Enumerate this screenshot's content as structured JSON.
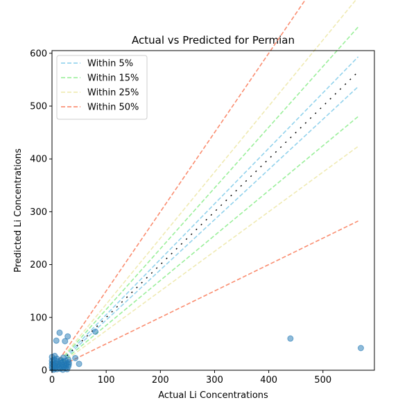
{
  "chart_data": {
    "type": "scatter",
    "title": "Actual vs Predicted for Permian",
    "xlabel": "Actual Li Concentrations",
    "ylabel": "Predicted Li Concentrations",
    "xlim": [
      0,
      595
    ],
    "ylim": [
      0,
      605
    ],
    "xticks": [
      0,
      100,
      200,
      300,
      400,
      500
    ],
    "yticks": [
      0,
      100,
      200,
      300,
      400,
      500,
      600
    ],
    "grid": false,
    "legend_position": "top-left",
    "line_range": [
      0,
      565
    ],
    "point_color": "#1f77b4",
    "bands": [
      {
        "name": "Within 5%",
        "factor": 0.05,
        "color": "#87ceeb"
      },
      {
        "name": "Within 15%",
        "factor": 0.15,
        "color": "#90ee90"
      },
      {
        "name": "Within 25%",
        "factor": 0.25,
        "color": "#eee8aa"
      },
      {
        "name": "Within 50%",
        "factor": 0.5,
        "color": "#fa8060"
      }
    ],
    "points": [
      {
        "x": 0,
        "y": 25
      },
      {
        "x": 0,
        "y": 18
      },
      {
        "x": 0,
        "y": 12
      },
      {
        "x": 0,
        "y": 6
      },
      {
        "x": 1,
        "y": 3
      },
      {
        "x": 2,
        "y": 10
      },
      {
        "x": 2,
        "y": 15
      },
      {
        "x": 3,
        "y": 1
      },
      {
        "x": 4,
        "y": 20
      },
      {
        "x": 5,
        "y": 8
      },
      {
        "x": 5,
        "y": 27
      },
      {
        "x": 6,
        "y": 4
      },
      {
        "x": 7,
        "y": 13
      },
      {
        "x": 8,
        "y": 56
      },
      {
        "x": 9,
        "y": 22
      },
      {
        "x": 9,
        "y": 2
      },
      {
        "x": 10,
        "y": 17
      },
      {
        "x": 11,
        "y": 9
      },
      {
        "x": 12,
        "y": 12
      },
      {
        "x": 13,
        "y": 5
      },
      {
        "x": 14,
        "y": 71
      },
      {
        "x": 15,
        "y": 3
      },
      {
        "x": 16,
        "y": 19
      },
      {
        "x": 17,
        "y": 14
      },
      {
        "x": 18,
        "y": 7
      },
      {
        "x": 19,
        "y": 10
      },
      {
        "x": 20,
        "y": 16
      },
      {
        "x": 20,
        "y": 1
      },
      {
        "x": 21,
        "y": 24
      },
      {
        "x": 22,
        "y": 6
      },
      {
        "x": 23,
        "y": 11
      },
      {
        "x": 24,
        "y": 55
      },
      {
        "x": 25,
        "y": 18
      },
      {
        "x": 25,
        "y": 4
      },
      {
        "x": 26,
        "y": 9
      },
      {
        "x": 27,
        "y": 13
      },
      {
        "x": 28,
        "y": 2
      },
      {
        "x": 29,
        "y": 64
      },
      {
        "x": 30,
        "y": 20
      },
      {
        "x": 30,
        "y": 7
      },
      {
        "x": 31,
        "y": 15
      },
      {
        "x": 31,
        "y": 11
      },
      {
        "x": 43,
        "y": 23
      },
      {
        "x": 50,
        "y": 12
      },
      {
        "x": 80,
        "y": 73
      },
      {
        "x": 440,
        "y": 60
      },
      {
        "x": 570,
        "y": 42
      }
    ]
  }
}
